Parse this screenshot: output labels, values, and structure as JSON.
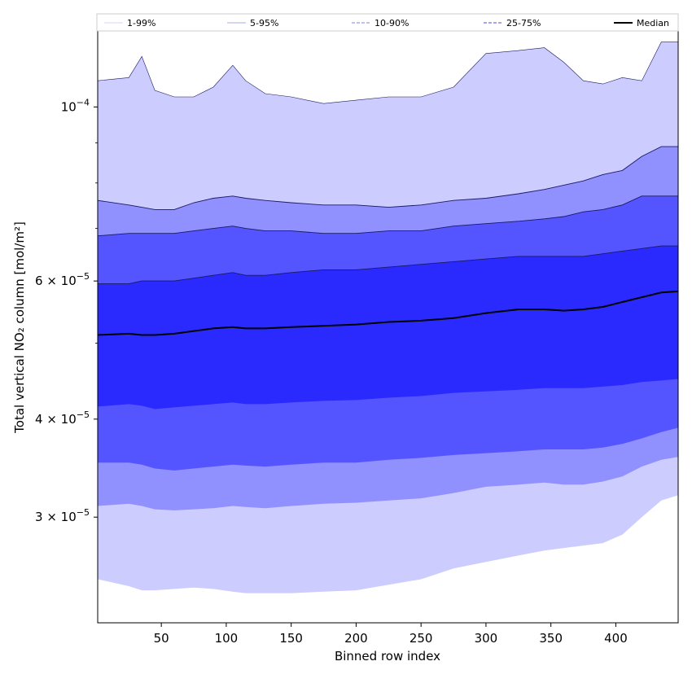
{
  "chart_data": {
    "type": "area",
    "xlabel": "Binned row index",
    "ylabel": "Total vertical NO₂ column [mol/m²]",
    "x_ticks": [
      50,
      100,
      150,
      200,
      250,
      300,
      350,
      400
    ],
    "y_ticks": [
      {
        "value": 0.0001,
        "label": "10",
        "exp": "−4",
        "mant": ""
      },
      {
        "value": 6e-05,
        "label": "6",
        "exp": "−5",
        "mant": "× 10"
      },
      {
        "value": 4e-05,
        "label": "4",
        "exp": "−5",
        "mant": "× 10"
      },
      {
        "value": 3e-05,
        "label": "3",
        "exp": "−5",
        "mant": "× 10"
      }
    ],
    "xlim": [
      1,
      448
    ],
    "ylim": [
      2.2e-05,
      0.000125
    ],
    "yscale": "log",
    "grid": false,
    "legend_position": "top",
    "legend": [
      {
        "label": "1-99%",
        "style": "solid",
        "color": "#d6d6f5"
      },
      {
        "label": "5-95%",
        "style": "solid",
        "color": "#a8a8e8"
      },
      {
        "label": "10-90%",
        "style": "dashed",
        "color": "#8080ee"
      },
      {
        "label": "25-75%",
        "style": "dashed",
        "color": "#4a4ae0"
      },
      {
        "label": "Median",
        "style": "solid",
        "color": "#000000"
      }
    ],
    "x": [
      1,
      25,
      35,
      45,
      60,
      75,
      90,
      105,
      115,
      130,
      150,
      175,
      200,
      225,
      250,
      275,
      300,
      325,
      345,
      360,
      375,
      390,
      405,
      420,
      435,
      448
    ],
    "series": [
      {
        "name": "99%",
        "color": "#ccccff",
        "values": [
          0.000108,
          0.000109,
          0.000116,
          0.000105,
          0.000103,
          0.000103,
          0.000106,
          0.000113,
          0.000108,
          0.000104,
          0.000103,
          0.000101,
          0.000102,
          0.000103,
          0.000103,
          0.000106,
          0.000117,
          0.000118,
          0.000119,
          0.000114,
          0.000108,
          0.000107,
          0.000109,
          0.000108,
          0.000121,
          0.000121
        ]
      },
      {
        "name": "95%",
        "color": "#9090ff",
        "values": [
          7.6e-05,
          7.5e-05,
          7.45e-05,
          7.4e-05,
          7.4e-05,
          7.55e-05,
          7.65e-05,
          7.7e-05,
          7.65e-05,
          7.6e-05,
          7.55e-05,
          7.5e-05,
          7.5e-05,
          7.45e-05,
          7.5e-05,
          7.6e-05,
          7.65e-05,
          7.75e-05,
          7.85e-05,
          7.95e-05,
          8.05e-05,
          8.2e-05,
          8.3e-05,
          8.65e-05,
          8.9e-05,
          8.9e-05
        ]
      },
      {
        "name": "90%",
        "color": "#5555ff",
        "values": [
          6.85e-05,
          6.9e-05,
          6.9e-05,
          6.9e-05,
          6.9e-05,
          6.95e-05,
          7e-05,
          7.05e-05,
          7e-05,
          6.95e-05,
          6.95e-05,
          6.9e-05,
          6.9e-05,
          6.95e-05,
          6.95e-05,
          7.05e-05,
          7.1e-05,
          7.15e-05,
          7.2e-05,
          7.25e-05,
          7.35e-05,
          7.4e-05,
          7.5e-05,
          7.7e-05,
          7.7e-05,
          7.7e-05
        ]
      },
      {
        "name": "75%",
        "color": "#2a2aff",
        "values": [
          5.95e-05,
          5.95e-05,
          6e-05,
          6e-05,
          6e-05,
          6.05e-05,
          6.1e-05,
          6.15e-05,
          6.1e-05,
          6.1e-05,
          6.15e-05,
          6.2e-05,
          6.2e-05,
          6.25e-05,
          6.3e-05,
          6.35e-05,
          6.4e-05,
          6.45e-05,
          6.45e-05,
          6.45e-05,
          6.45e-05,
          6.5e-05,
          6.55e-05,
          6.6e-05,
          6.65e-05,
          6.65e-05
        ]
      },
      {
        "name": "Median",
        "color": "#000000",
        "values": [
          5.12e-05,
          5.14e-05,
          5.12e-05,
          5.12e-05,
          5.14e-05,
          5.18e-05,
          5.22e-05,
          5.24e-05,
          5.22e-05,
          5.22e-05,
          5.24e-05,
          5.26e-05,
          5.28e-05,
          5.32e-05,
          5.34e-05,
          5.38e-05,
          5.46e-05,
          5.52e-05,
          5.52e-05,
          5.5e-05,
          5.52e-05,
          5.56e-05,
          5.64e-05,
          5.72e-05,
          5.8e-05,
          5.82e-05
        ]
      },
      {
        "name": "25%",
        "color": "#2a2aff",
        "values": [
          4.15e-05,
          4.18e-05,
          4.16e-05,
          4.12e-05,
          4.14e-05,
          4.16e-05,
          4.18e-05,
          4.2e-05,
          4.18e-05,
          4.18e-05,
          4.2e-05,
          4.22e-05,
          4.23e-05,
          4.26e-05,
          4.28e-05,
          4.32e-05,
          4.34e-05,
          4.36e-05,
          4.38e-05,
          4.38e-05,
          4.38e-05,
          4.4e-05,
          4.42e-05,
          4.46e-05,
          4.48e-05,
          4.5e-05
        ]
      },
      {
        "name": "10%",
        "color": "#5555ff",
        "values": [
          3.52e-05,
          3.52e-05,
          3.5e-05,
          3.46e-05,
          3.44e-05,
          3.46e-05,
          3.48e-05,
          3.5e-05,
          3.49e-05,
          3.48e-05,
          3.5e-05,
          3.52e-05,
          3.52e-05,
          3.55e-05,
          3.57e-05,
          3.6e-05,
          3.62e-05,
          3.64e-05,
          3.66e-05,
          3.66e-05,
          3.66e-05,
          3.68e-05,
          3.72e-05,
          3.78e-05,
          3.85e-05,
          3.9e-05
        ]
      },
      {
        "name": "5%",
        "color": "#9090ff",
        "values": [
          3.1e-05,
          3.12e-05,
          3.1e-05,
          3.07e-05,
          3.06e-05,
          3.07e-05,
          3.08e-05,
          3.1e-05,
          3.09e-05,
          3.08e-05,
          3.1e-05,
          3.12e-05,
          3.13e-05,
          3.15e-05,
          3.17e-05,
          3.22e-05,
          3.28e-05,
          3.3e-05,
          3.32e-05,
          3.3e-05,
          3.3e-05,
          3.33e-05,
          3.38e-05,
          3.48e-05,
          3.55e-05,
          3.58e-05
        ]
      },
      {
        "name": "1%",
        "color": "#ccccff",
        "values": [
          2.5e-05,
          2.45e-05,
          2.42e-05,
          2.42e-05,
          2.43e-05,
          2.44e-05,
          2.43e-05,
          2.41e-05,
          2.4e-05,
          2.4e-05,
          2.4e-05,
          2.41e-05,
          2.42e-05,
          2.46e-05,
          2.5e-05,
          2.58e-05,
          2.63e-05,
          2.68e-05,
          2.72e-05,
          2.74e-05,
          2.76e-05,
          2.78e-05,
          2.85e-05,
          3e-05,
          3.15e-05,
          3.2e-05
        ]
      }
    ]
  }
}
